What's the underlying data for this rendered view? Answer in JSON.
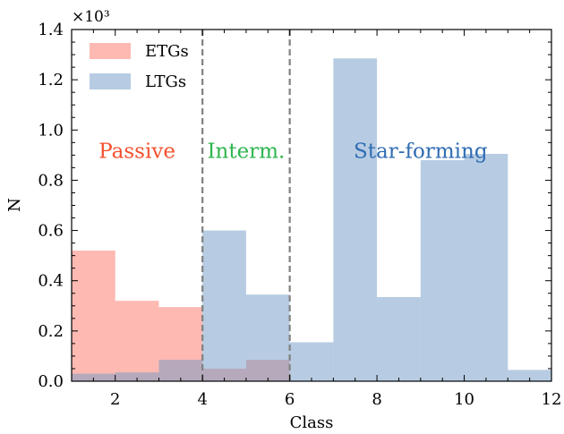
{
  "chart_data": {
    "type": "bar",
    "xlabel": "Class",
    "ylabel": "N",
    "y_multiplier_label": "×10³",
    "xlim": [
      1,
      12
    ],
    "ylim": [
      0,
      1.4
    ],
    "x_ticks": [
      2,
      4,
      6,
      8,
      10,
      12
    ],
    "x_tick_labels": [
      "2",
      "4",
      "6",
      "8",
      "10",
      "12"
    ],
    "y_ticks": [
      0,
      0.2,
      0.4,
      0.6,
      0.8,
      1.0,
      1.2,
      1.4
    ],
    "y_tick_labels": [
      "0.0",
      "0.2",
      "0.4",
      "0.6",
      "0.8",
      "1.0",
      "1.2",
      "1.4"
    ],
    "bin_edges": [
      1,
      2,
      3,
      4,
      5,
      6,
      7,
      8,
      9,
      10,
      11,
      12
    ],
    "series": [
      {
        "name": "ETGs",
        "color": "#fb8072",
        "alpha": 0.55,
        "values": [
          0.52,
          0.32,
          0.295,
          0.05,
          0.085,
          0,
          0,
          0,
          0,
          0,
          0
        ]
      },
      {
        "name": "LTGs",
        "color": "#6f9ac6",
        "alpha": 0.5,
        "values": [
          0.03,
          0.035,
          0.085,
          0.6,
          0.345,
          0.155,
          1.285,
          0.335,
          0.88,
          0.905,
          0.045
        ]
      }
    ],
    "vlines": [
      4,
      6
    ],
    "legend": {
      "placement": "top-left"
    },
    "annotations": [
      {
        "text": "Passive",
        "x": 2.5,
        "y": 0.9,
        "color": "#f4512d"
      },
      {
        "text": "Interm.",
        "x": 5.0,
        "y": 0.9,
        "color": "#2eb54e"
      },
      {
        "text": "Star-forming",
        "x": 9.0,
        "y": 0.9,
        "color": "#2f6cb3"
      }
    ]
  }
}
